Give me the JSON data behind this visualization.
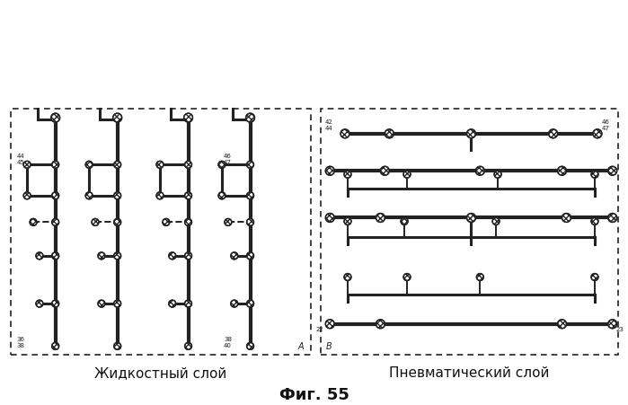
{
  "title": "Фиг. 55",
  "left_label": "Жидкостный слой",
  "right_label": "Пневматический слой",
  "left_panel_label": "A",
  "right_panel_label": "B",
  "bg_color": "#ffffff",
  "line_color": "#222222"
}
